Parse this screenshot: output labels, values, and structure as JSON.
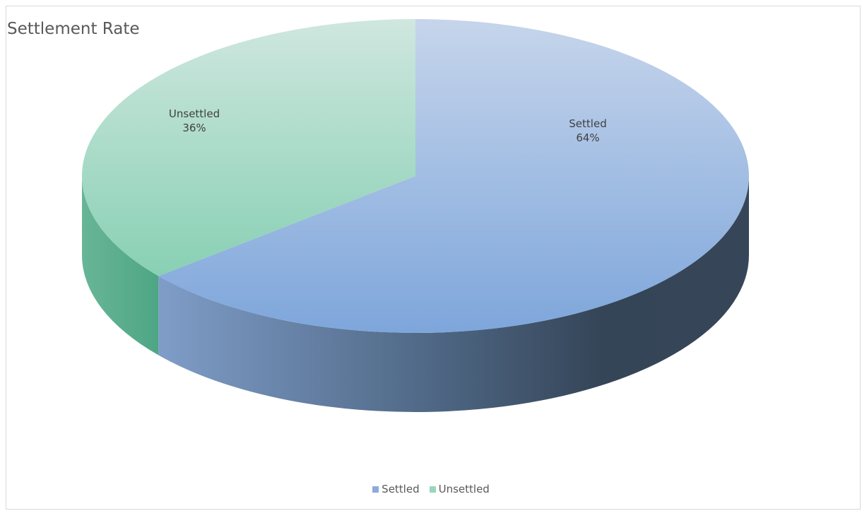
{
  "chart_data": {
    "type": "pie",
    "title": "Settlement Rate",
    "slices": [
      {
        "label": "Settled",
        "value": 64,
        "percent_label": "64%",
        "color": "#8eaadb"
      },
      {
        "label": "Unsettled",
        "value": 36,
        "percent_label": "36%",
        "color": "#9ad6bb"
      }
    ],
    "legend": {
      "position": "bottom",
      "items": [
        "Settled",
        "Unsettled"
      ]
    },
    "style": "3d"
  }
}
